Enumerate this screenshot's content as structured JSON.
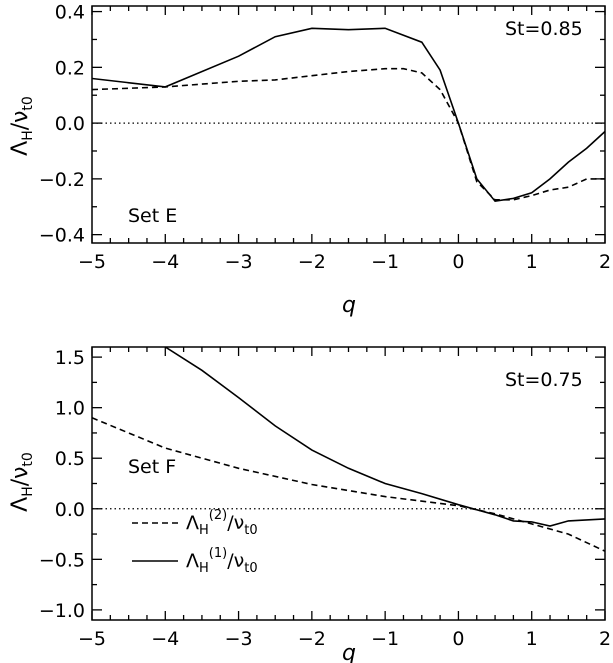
{
  "chart_data": [
    {
      "type": "line",
      "xlabel": "q",
      "ylabel": "ΛH/νt0",
      "xlim": [
        -5,
        2
      ],
      "ylim": [
        -0.43,
        0.42
      ],
      "xticks": [
        "−5",
        "−4",
        "−3",
        "−2",
        "−1",
        "0",
        "1",
        "2"
      ],
      "yticks": [
        "−0.4",
        "−0.2",
        "0.0",
        "0.2",
        "0.4"
      ],
      "annotations": {
        "st": "St=0.85",
        "set": "Set E"
      },
      "series": [
        {
          "style": "solid",
          "x": [
            -5,
            -4,
            -3,
            -2.5,
            -2,
            -1.5,
            -1,
            -0.5,
            -0.25,
            0,
            0.25,
            0.5,
            0.75,
            1,
            1.25,
            1.5,
            1.75,
            2
          ],
          "values": [
            0.16,
            0.13,
            0.24,
            0.31,
            0.34,
            0.335,
            0.34,
            0.29,
            0.19,
            0.0,
            -0.2,
            -0.28,
            -0.27,
            -0.25,
            -0.2,
            -0.14,
            -0.09,
            -0.03
          ]
        },
        {
          "style": "dashed",
          "x": [
            -5,
            -4,
            -3,
            -2.5,
            -2,
            -1.5,
            -1,
            -0.75,
            -0.5,
            -0.25,
            0,
            0.25,
            0.5,
            0.75,
            1,
            1.25,
            1.5,
            1.75,
            2
          ],
          "values": [
            0.12,
            0.13,
            0.15,
            0.155,
            0.17,
            0.185,
            0.195,
            0.195,
            0.18,
            0.12,
            0.0,
            -0.21,
            -0.275,
            -0.275,
            -0.26,
            -0.24,
            -0.23,
            -0.2,
            -0.2
          ]
        }
      ]
    },
    {
      "type": "line",
      "xlabel": "q",
      "ylabel": "ΛH/νt0",
      "xlim": [
        -5,
        2
      ],
      "ylim": [
        -1.1,
        1.6
      ],
      "xticks": [
        "−5",
        "−4",
        "−3",
        "−2",
        "−1",
        "0",
        "1",
        "2"
      ],
      "yticks": [
        "−1.0",
        "−0.5",
        "0.0",
        "0.5",
        "1.0",
        "1.5"
      ],
      "annotations": {
        "st": "St=0.75",
        "set": "Set F"
      },
      "series": [
        {
          "name": "ΛH(2)/νt0",
          "style": "dashed",
          "x": [
            -5,
            -4,
            -3,
            -2,
            -1,
            0,
            0.5,
            1,
            1.5,
            2
          ],
          "values": [
            0.9,
            0.6,
            0.4,
            0.24,
            0.12,
            0.03,
            -0.05,
            -0.15,
            -0.25,
            -0.42
          ]
        },
        {
          "name": "ΛH(1)/νt0",
          "style": "solid",
          "x": [
            -4,
            -3.5,
            -3,
            -2.5,
            -2,
            -1.5,
            -1,
            -0.5,
            0,
            0.5,
            0.75,
            1,
            1.25,
            1.5,
            2
          ],
          "values": [
            1.6,
            1.37,
            1.1,
            0.82,
            0.58,
            0.4,
            0.25,
            0.15,
            0.04,
            -0.06,
            -0.12,
            -0.13,
            -0.17,
            -0.12,
            -0.1
          ]
        }
      ]
    }
  ]
}
